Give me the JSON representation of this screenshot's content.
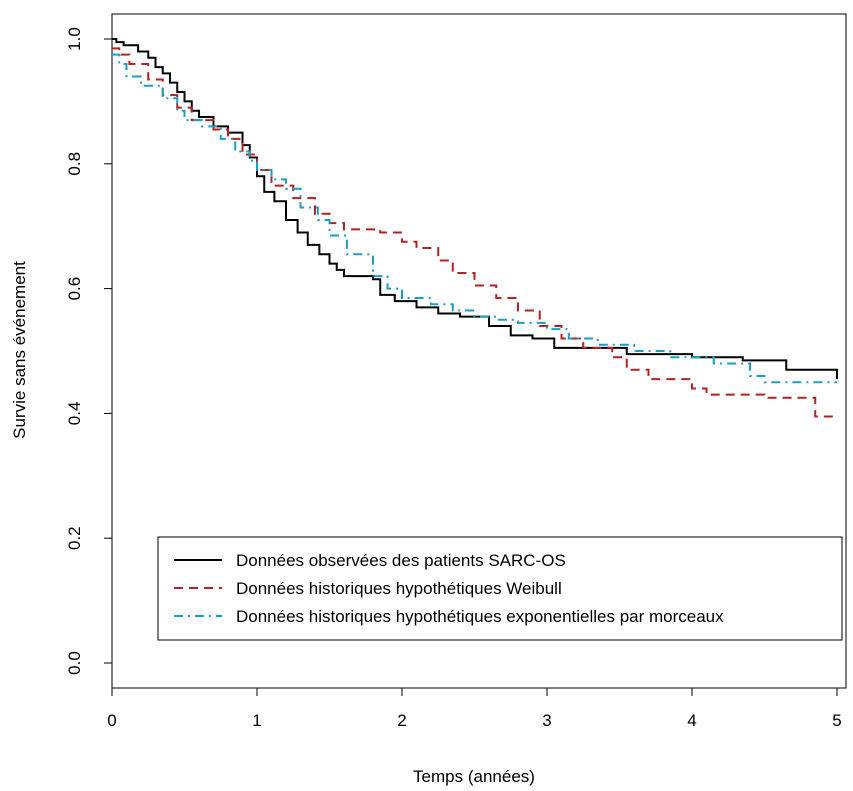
{
  "chart_data": {
    "type": "line",
    "xlabel": "Temps (années)",
    "ylabel": "Survie sans événement",
    "xlim": [
      0,
      5
    ],
    "ylim": [
      0,
      1
    ],
    "x_ticks": [
      0,
      1,
      2,
      3,
      4,
      5
    ],
    "y_ticks": [
      0.0,
      0.2,
      0.4,
      0.6,
      0.8,
      1.0
    ],
    "x_tick_labels": [
      "0",
      "1",
      "2",
      "3",
      "4",
      "5"
    ],
    "y_tick_labels": [
      "0.0",
      "0.2",
      "0.4",
      "0.6",
      "0.8",
      "1.0"
    ],
    "grid": false,
    "legend_position": "bottom-right",
    "series": [
      {
        "name": "Données observées des patients SARC-OS",
        "color": "#000000",
        "dash": "solid",
        "step": true,
        "x": [
          0,
          0.03,
          0.08,
          0.18,
          0.25,
          0.3,
          0.35,
          0.4,
          0.45,
          0.5,
          0.55,
          0.6,
          0.7,
          0.8,
          0.9,
          0.95,
          1.0,
          1.05,
          1.12,
          1.2,
          1.28,
          1.35,
          1.43,
          1.5,
          1.55,
          1.6,
          1.8,
          1.85,
          1.95,
          2.1,
          2.25,
          2.4,
          2.6,
          2.75,
          2.9,
          3.05,
          3.3,
          3.55,
          4.0,
          4.35,
          4.65,
          5.0
        ],
        "y": [
          1.0,
          0.995,
          0.99,
          0.98,
          0.97,
          0.955,
          0.945,
          0.93,
          0.915,
          0.9,
          0.885,
          0.875,
          0.86,
          0.85,
          0.83,
          0.81,
          0.78,
          0.755,
          0.74,
          0.71,
          0.69,
          0.67,
          0.655,
          0.64,
          0.63,
          0.62,
          0.615,
          0.59,
          0.58,
          0.57,
          0.56,
          0.555,
          0.54,
          0.525,
          0.52,
          0.505,
          0.505,
          0.495,
          0.49,
          0.485,
          0.47,
          0.455
        ]
      },
      {
        "name": "Données historiques hypothétiques Weibull",
        "color": "#b22222",
        "dash": "dashed",
        "step": true,
        "x": [
          0,
          0.05,
          0.12,
          0.25,
          0.35,
          0.45,
          0.55,
          0.7,
          0.8,
          0.9,
          1.0,
          1.1,
          1.25,
          1.4,
          1.5,
          1.6,
          1.85,
          2.0,
          2.1,
          2.25,
          2.35,
          2.5,
          2.65,
          2.8,
          2.95,
          3.1,
          3.25,
          3.45,
          3.55,
          3.7,
          4.0,
          4.1,
          4.5,
          4.75,
          4.85,
          5.0
        ],
        "y": [
          0.985,
          0.975,
          0.96,
          0.935,
          0.91,
          0.89,
          0.87,
          0.855,
          0.84,
          0.815,
          0.79,
          0.765,
          0.745,
          0.72,
          0.705,
          0.695,
          0.69,
          0.675,
          0.665,
          0.645,
          0.625,
          0.605,
          0.585,
          0.565,
          0.54,
          0.52,
          0.505,
          0.49,
          0.47,
          0.455,
          0.44,
          0.43,
          0.425,
          0.425,
          0.395,
          0.395
        ]
      },
      {
        "name": "Données historiques hypothétiques exponentielles par morceaux",
        "color": "#1a9fc4",
        "dash": "dashdot",
        "step": true,
        "x": [
          0,
          0.05,
          0.1,
          0.2,
          0.35,
          0.45,
          0.5,
          0.62,
          0.75,
          0.85,
          0.95,
          1.0,
          1.1,
          1.2,
          1.3,
          1.42,
          1.5,
          1.62,
          1.8,
          1.9,
          2.0,
          2.2,
          2.35,
          2.5,
          2.65,
          2.8,
          3.0,
          3.15,
          3.35,
          3.6,
          3.85,
          4.15,
          4.4,
          4.5,
          5.0
        ],
        "y": [
          0.975,
          0.96,
          0.94,
          0.925,
          0.905,
          0.885,
          0.87,
          0.86,
          0.84,
          0.82,
          0.805,
          0.79,
          0.775,
          0.76,
          0.73,
          0.71,
          0.685,
          0.655,
          0.62,
          0.6,
          0.585,
          0.575,
          0.565,
          0.555,
          0.55,
          0.545,
          0.535,
          0.52,
          0.51,
          0.5,
          0.49,
          0.48,
          0.46,
          0.45,
          0.45
        ]
      }
    ]
  }
}
